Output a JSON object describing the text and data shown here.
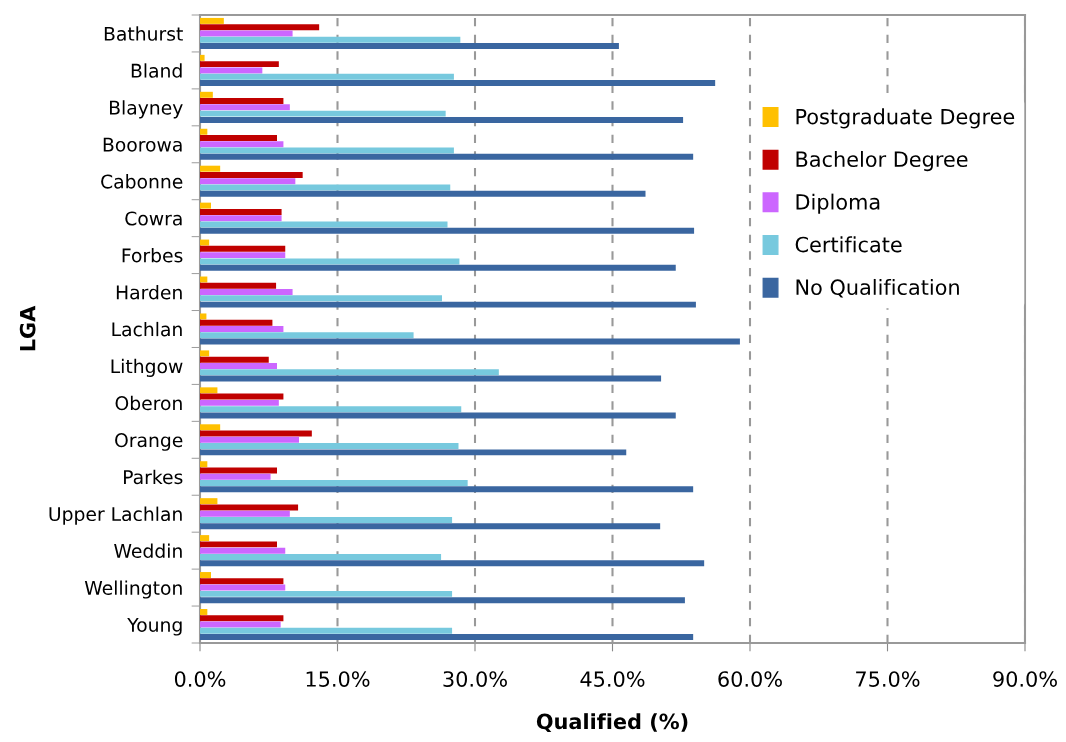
{
  "chart_data": {
    "type": "bar",
    "orientation": "horizontal",
    "xlabel": "Qualified (%)",
    "ylabel": "LGA",
    "categories": [
      "Bathurst",
      "Bland",
      "Blayney",
      "Boorowa",
      "Cabonne",
      "Cowra",
      "Forbes",
      "Harden",
      "Lachlan",
      "Lithgow",
      "Oberon",
      "Orange",
      "Parkes",
      "Upper Lachlan",
      "Weddin",
      "Wellington",
      "Young"
    ],
    "series": [
      {
        "name": "Postgraduate Degree",
        "color": "#ffc000",
        "values": [
          2.6,
          0.5,
          1.4,
          0.8,
          2.2,
          1.2,
          1.0,
          0.8,
          0.7,
          1.0,
          1.9,
          2.2,
          0.8,
          1.9,
          1.0,
          1.2,
          0.8
        ]
      },
      {
        "name": "Bachelor Degree",
        "color": "#c00000",
        "values": [
          13.0,
          8.6,
          9.1,
          8.4,
          11.2,
          8.9,
          9.3,
          8.3,
          7.9,
          7.5,
          9.1,
          12.2,
          8.4,
          10.7,
          8.4,
          9.1,
          9.1
        ]
      },
      {
        "name": "Diploma",
        "color": "#cc66ff",
        "values": [
          10.1,
          6.8,
          9.8,
          9.1,
          10.4,
          8.9,
          9.3,
          10.1,
          9.1,
          8.4,
          8.6,
          10.8,
          7.7,
          9.8,
          9.3,
          9.3,
          8.8
        ]
      },
      {
        "name": "Certificate",
        "color": "#77c9de",
        "values": [
          28.4,
          27.7,
          26.8,
          27.7,
          27.3,
          27.0,
          28.3,
          26.4,
          23.3,
          32.6,
          28.5,
          28.2,
          29.2,
          27.5,
          26.3,
          27.5,
          27.5
        ]
      },
      {
        "name": "No Qualification",
        "color": "#3a66a0",
        "values": [
          45.7,
          56.2,
          52.7,
          53.8,
          48.6,
          53.9,
          51.9,
          54.1,
          58.9,
          50.3,
          51.9,
          46.5,
          53.8,
          50.2,
          55.0,
          52.9,
          53.8
        ]
      }
    ],
    "xlim": [
      0,
      90
    ],
    "xticks": [
      {
        "value": 0,
        "label": "0.0%"
      },
      {
        "value": 15,
        "label": "15.0%"
      },
      {
        "value": 30,
        "label": "30.0%"
      },
      {
        "value": 45,
        "label": "45.0%"
      },
      {
        "value": 60,
        "label": "60.0%"
      },
      {
        "value": 75,
        "label": "75.0%"
      },
      {
        "value": 90,
        "label": "90.0%"
      }
    ],
    "grid": "x",
    "legend": "right"
  }
}
